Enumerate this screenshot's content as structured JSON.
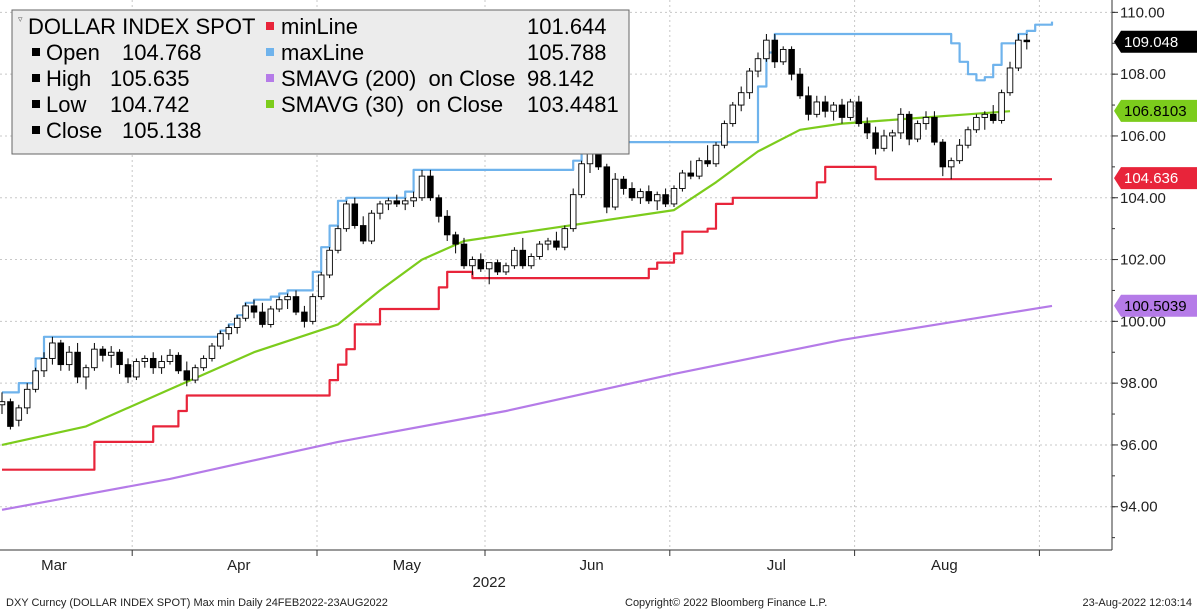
{
  "legend": {
    "title": "DOLLAR INDEX SPOT",
    "ohlc": [
      {
        "label": "Open",
        "value": "104.768"
      },
      {
        "label": "High",
        "value": "105.635"
      },
      {
        "label": "Low",
        "value": "104.742"
      },
      {
        "label": "Close",
        "value": "105.138"
      }
    ],
    "series": [
      {
        "label": "minLine",
        "value": "101.644",
        "color": "#e8243a"
      },
      {
        "label": "maxLine",
        "value": "105.788",
        "color": "#6fb3ec"
      },
      {
        "label": "SMAVG (200)  on Close",
        "value": "98.142",
        "color": "#b57be8"
      },
      {
        "label": "SMAVG (30)  on Close",
        "value": "103.4481",
        "color": "#7ccc1c"
      }
    ]
  },
  "badges": [
    {
      "text": "109.048",
      "value": 109.048,
      "bg": "#000000",
      "fg": "#ffffff"
    },
    {
      "text": "106.8103",
      "value": 106.8103,
      "bg": "#7ccc1c",
      "fg": "#000000"
    },
    {
      "text": "104.636",
      "value": 104.636,
      "bg": "#e8243a",
      "fg": "#ffffff"
    },
    {
      "text": "100.5039",
      "value": 100.5039,
      "bg": "#b57be8",
      "fg": "#000000"
    }
  ],
  "footer": {
    "left": "DXY Curncy (DOLLAR INDEX SPOT) Max min  Daily 24FEB2022-23AUG2022",
    "center": "Copyright© 2022 Bloomberg Finance L.P.",
    "right": "23-Aug-2022 12:03:14"
  },
  "chart_data": {
    "type": "candlestick",
    "y_ticks": [
      "110.00",
      "108.00",
      "106.00",
      "104.00",
      "102.00",
      "100.00",
      "98.00",
      "96.00",
      "94.00"
    ],
    "ylim": [
      92.6,
      110.4
    ],
    "x_ticks": [
      {
        "label": "Mar",
        "day": 5
      },
      {
        "label": "Apr",
        "day": 27
      },
      {
        "label": "May",
        "day": 47
      },
      {
        "label": "Jun",
        "day": 69
      },
      {
        "label": "Jul",
        "day": 91
      },
      {
        "label": "Aug",
        "day": 111
      }
    ],
    "x_sub_label": "2022",
    "n_days": 126,
    "candles": [
      [
        97.3,
        97.7,
        97.0,
        97.4
      ],
      [
        97.4,
        97.5,
        96.5,
        96.6
      ],
      [
        96.8,
        97.3,
        96.6,
        97.2
      ],
      [
        97.2,
        98.0,
        97.0,
        97.8
      ],
      [
        97.8,
        98.5,
        97.7,
        98.4
      ],
      [
        98.4,
        99.0,
        98.2,
        98.8
      ],
      [
        98.8,
        99.5,
        98.6,
        99.3
      ],
      [
        99.3,
        99.4,
        98.4,
        98.6
      ],
      [
        98.6,
        99.2,
        98.4,
        99.0
      ],
      [
        99.0,
        99.3,
        98.0,
        98.2
      ],
      [
        98.2,
        98.6,
        97.8,
        98.5
      ],
      [
        98.5,
        99.3,
        98.4,
        99.1
      ],
      [
        99.1,
        99.2,
        98.7,
        98.9
      ],
      [
        98.9,
        99.2,
        98.5,
        99.0
      ],
      [
        99.0,
        99.1,
        98.3,
        98.6
      ],
      [
        98.6,
        98.8,
        98.0,
        98.2
      ],
      [
        98.2,
        98.8,
        98.1,
        98.7
      ],
      [
        98.7,
        98.9,
        98.5,
        98.8
      ],
      [
        98.8,
        99.0,
        98.3,
        98.5
      ],
      [
        98.5,
        98.9,
        98.3,
        98.7
      ],
      [
        98.7,
        99.1,
        98.6,
        98.9
      ],
      [
        98.9,
        99.0,
        98.3,
        98.4
      ],
      [
        98.4,
        98.7,
        97.9,
        98.1
      ],
      [
        98.1,
        98.6,
        98.0,
        98.5
      ],
      [
        98.5,
        98.9,
        98.4,
        98.8
      ],
      [
        98.8,
        99.3,
        98.7,
        99.2
      ],
      [
        99.2,
        99.7,
        99.1,
        99.6
      ],
      [
        99.6,
        99.9,
        99.4,
        99.8
      ],
      [
        99.8,
        100.2,
        99.6,
        100.1
      ],
      [
        100.1,
        100.6,
        100.0,
        100.5
      ],
      [
        100.5,
        100.7,
        100.1,
        100.3
      ],
      [
        100.3,
        100.6,
        99.8,
        99.9
      ],
      [
        99.9,
        100.5,
        99.8,
        100.4
      ],
      [
        100.4,
        100.8,
        100.3,
        100.7
      ],
      [
        100.7,
        100.9,
        100.4,
        100.8
      ],
      [
        100.8,
        101.0,
        100.2,
        100.3
      ],
      [
        100.3,
        100.5,
        99.8,
        100.0
      ],
      [
        100.0,
        100.9,
        99.9,
        100.8
      ],
      [
        100.8,
        101.6,
        100.7,
        101.5
      ],
      [
        101.5,
        102.4,
        101.4,
        102.3
      ],
      [
        102.3,
        103.1,
        102.2,
        103.0
      ],
      [
        103.0,
        103.9,
        102.9,
        103.8
      ],
      [
        103.8,
        104.0,
        103.0,
        103.1
      ],
      [
        103.1,
        103.4,
        102.5,
        102.6
      ],
      [
        102.6,
        103.6,
        102.5,
        103.5
      ],
      [
        103.5,
        103.9,
        103.3,
        103.8
      ],
      [
        103.8,
        104.0,
        103.6,
        103.9
      ],
      [
        103.9,
        104.1,
        103.7,
        103.8
      ],
      [
        103.8,
        104.0,
        103.6,
        103.9
      ],
      [
        103.9,
        104.2,
        103.7,
        104.0
      ],
      [
        104.0,
        104.9,
        103.9,
        104.7
      ],
      [
        104.7,
        104.9,
        103.9,
        104.0
      ],
      [
        104.0,
        104.1,
        103.2,
        103.4
      ],
      [
        103.4,
        103.6,
        102.6,
        102.8
      ],
      [
        102.8,
        102.9,
        102.2,
        102.5
      ],
      [
        102.5,
        102.7,
        101.7,
        101.8
      ],
      [
        101.8,
        102.1,
        101.5,
        102.0
      ],
      [
        102.0,
        102.2,
        101.6,
        101.7
      ],
      [
        101.7,
        101.9,
        101.2,
        101.9
      ],
      [
        101.9,
        102.0,
        101.5,
        101.6
      ],
      [
        101.6,
        101.9,
        101.5,
        101.8
      ],
      [
        101.8,
        102.4,
        101.7,
        102.3
      ],
      [
        102.3,
        102.7,
        101.7,
        101.8
      ],
      [
        101.8,
        102.2,
        101.7,
        102.1
      ],
      [
        102.1,
        102.6,
        102.0,
        102.5
      ],
      [
        102.5,
        102.7,
        102.3,
        102.6
      ],
      [
        102.6,
        102.9,
        102.3,
        102.4
      ],
      [
        102.4,
        103.1,
        102.3,
        103.0
      ],
      [
        103.0,
        104.3,
        102.9,
        104.1
      ],
      [
        104.1,
        105.2,
        104.0,
        105.1
      ],
      [
        105.1,
        105.6,
        104.8,
        105.5
      ],
      [
        105.5,
        105.8,
        104.9,
        105.0
      ],
      [
        105.0,
        105.1,
        103.5,
        103.7
      ],
      [
        103.7,
        104.8,
        103.6,
        104.6
      ],
      [
        104.6,
        104.7,
        104.1,
        104.3
      ],
      [
        104.3,
        104.5,
        103.9,
        104.0
      ],
      [
        104.0,
        104.3,
        103.8,
        104.2
      ],
      [
        104.2,
        104.4,
        103.8,
        103.9
      ],
      [
        103.9,
        104.2,
        103.6,
        104.1
      ],
      [
        104.1,
        104.3,
        103.7,
        103.8
      ],
      [
        103.8,
        104.4,
        103.7,
        104.3
      ],
      [
        104.3,
        104.9,
        104.2,
        104.8
      ],
      [
        104.8,
        105.2,
        104.6,
        104.7
      ],
      [
        104.7,
        105.3,
        104.6,
        105.2
      ],
      [
        105.2,
        105.7,
        105.0,
        105.1
      ],
      [
        105.1,
        105.8,
        105.0,
        105.7
      ],
      [
        105.7,
        106.5,
        105.6,
        106.4
      ],
      [
        106.4,
        107.1,
        106.3,
        107.0
      ],
      [
        107.0,
        107.6,
        106.8,
        107.4
      ],
      [
        107.4,
        108.2,
        107.2,
        108.1
      ],
      [
        108.1,
        108.7,
        107.9,
        108.5
      ],
      [
        108.5,
        109.3,
        108.4,
        109.1
      ],
      [
        109.1,
        109.3,
        108.2,
        108.4
      ],
      [
        108.4,
        108.9,
        108.3,
        108.8
      ],
      [
        108.8,
        108.9,
        107.8,
        108.0
      ],
      [
        108.0,
        108.2,
        107.2,
        107.3
      ],
      [
        107.3,
        107.6,
        106.5,
        106.7
      ],
      [
        106.7,
        107.3,
        106.6,
        107.1
      ],
      [
        107.1,
        107.3,
        106.6,
        106.8
      ],
      [
        106.8,
        107.1,
        106.5,
        107.0
      ],
      [
        107.0,
        107.2,
        106.4,
        106.6
      ],
      [
        106.6,
        107.2,
        106.5,
        107.1
      ],
      [
        107.1,
        107.3,
        106.3,
        106.4
      ],
      [
        106.4,
        106.6,
        105.9,
        106.1
      ],
      [
        106.1,
        106.3,
        105.4,
        105.6
      ],
      [
        105.6,
        106.2,
        105.5,
        106.0
      ],
      [
        106.0,
        106.2,
        105.5,
        106.1
      ],
      [
        106.1,
        106.9,
        105.9,
        106.7
      ],
      [
        106.7,
        106.8,
        105.7,
        105.9
      ],
      [
        105.9,
        106.5,
        105.8,
        106.4
      ],
      [
        106.4,
        106.8,
        106.2,
        106.6
      ],
      [
        106.6,
        106.8,
        105.7,
        105.8
      ],
      [
        105.8,
        105.9,
        104.7,
        105.0
      ],
      [
        105.0,
        105.3,
        104.6,
        105.2
      ],
      [
        105.2,
        105.9,
        105.1,
        105.7
      ],
      [
        105.7,
        106.3,
        105.6,
        106.2
      ],
      [
        106.2,
        106.7,
        106.1,
        106.6
      ],
      [
        106.6,
        106.8,
        106.2,
        106.7
      ],
      [
        106.7,
        107.0,
        106.4,
        106.5
      ],
      [
        106.5,
        107.5,
        106.4,
        107.4
      ],
      [
        107.4,
        108.4,
        107.3,
        108.2
      ],
      [
        108.2,
        109.3,
        108.1,
        109.1
      ],
      [
        109.1,
        109.3,
        108.8,
        109.05
      ]
    ],
    "max_line": {
      "color": "#6fb3ec",
      "steps": [
        [
          0,
          97.7
        ],
        [
          2,
          98.0
        ],
        [
          4,
          98.8
        ],
        [
          5,
          99.5
        ],
        [
          26,
          99.7
        ],
        [
          27,
          99.9
        ],
        [
          28,
          100.2
        ],
        [
          29,
          100.6
        ],
        [
          30,
          100.7
        ],
        [
          32,
          100.8
        ],
        [
          33,
          100.9
        ],
        [
          34,
          101.0
        ],
        [
          37,
          101.6
        ],
        [
          38,
          102.4
        ],
        [
          39,
          103.1
        ],
        [
          40,
          103.9
        ],
        [
          41,
          104.0
        ],
        [
          48,
          104.2
        ],
        [
          49,
          104.9
        ],
        [
          68,
          105.2
        ],
        [
          69,
          105.6
        ],
        [
          70,
          105.8
        ],
        [
          90,
          107.6
        ],
        [
          91,
          108.7
        ],
        [
          92,
          109.3
        ],
        [
          112,
          109.3
        ],
        [
          113,
          109.0
        ],
        [
          114,
          108.4
        ],
        [
          115,
          108.0
        ],
        [
          116,
          107.8
        ],
        [
          117,
          107.9
        ],
        [
          118,
          108.3
        ],
        [
          119,
          109.0
        ],
        [
          121,
          109.3
        ],
        [
          122,
          109.4
        ],
        [
          123,
          109.6
        ],
        [
          125,
          109.7
        ]
      ]
    },
    "min_line": {
      "color": "#e8243a",
      "steps": [
        [
          0,
          95.2
        ],
        [
          10,
          95.2
        ],
        [
          11,
          96.1
        ],
        [
          17,
          96.1
        ],
        [
          18,
          96.6
        ],
        [
          20,
          96.6
        ],
        [
          21,
          97.1
        ],
        [
          22,
          97.6
        ],
        [
          38,
          97.6
        ],
        [
          39,
          98.1
        ],
        [
          40,
          98.6
        ],
        [
          41,
          99.1
        ],
        [
          42,
          99.9
        ],
        [
          44,
          99.9
        ],
        [
          45,
          100.4
        ],
        [
          51,
          100.4
        ],
        [
          52,
          101.1
        ],
        [
          53,
          101.6
        ],
        [
          55,
          101.6
        ],
        [
          56,
          101.4
        ],
        [
          76,
          101.4
        ],
        [
          77,
          101.7
        ],
        [
          78,
          101.9
        ],
        [
          80,
          102.2
        ],
        [
          81,
          102.9
        ],
        [
          84,
          103.0
        ],
        [
          85,
          103.8
        ],
        [
          87,
          104.0
        ],
        [
          96,
          104.0
        ],
        [
          97,
          104.5
        ],
        [
          98,
          105.0
        ],
        [
          103,
          105.0
        ],
        [
          104,
          104.6
        ],
        [
          125,
          104.6
        ]
      ]
    },
    "sma200": {
      "color": "#b57be8",
      "points": [
        [
          0,
          93.9
        ],
        [
          20,
          94.9
        ],
        [
          40,
          96.1
        ],
        [
          60,
          97.1
        ],
        [
          80,
          98.3
        ],
        [
          100,
          99.4
        ],
        [
          125,
          100.5
        ]
      ]
    },
    "sma30": {
      "color": "#7ccc1c",
      "points": [
        [
          0,
          96.0
        ],
        [
          10,
          96.6
        ],
        [
          20,
          97.8
        ],
        [
          30,
          99.0
        ],
        [
          40,
          99.9
        ],
        [
          45,
          101.0
        ],
        [
          50,
          102.0
        ],
        [
          55,
          102.6
        ],
        [
          60,
          102.8
        ],
        [
          65,
          103.0
        ],
        [
          70,
          103.2
        ],
        [
          75,
          103.4
        ],
        [
          80,
          103.6
        ],
        [
          85,
          104.5
        ],
        [
          90,
          105.5
        ],
        [
          95,
          106.2
        ],
        [
          100,
          106.4
        ],
        [
          105,
          106.5
        ],
        [
          110,
          106.6
        ],
        [
          115,
          106.7
        ],
        [
          120,
          106.8
        ]
      ]
    }
  }
}
